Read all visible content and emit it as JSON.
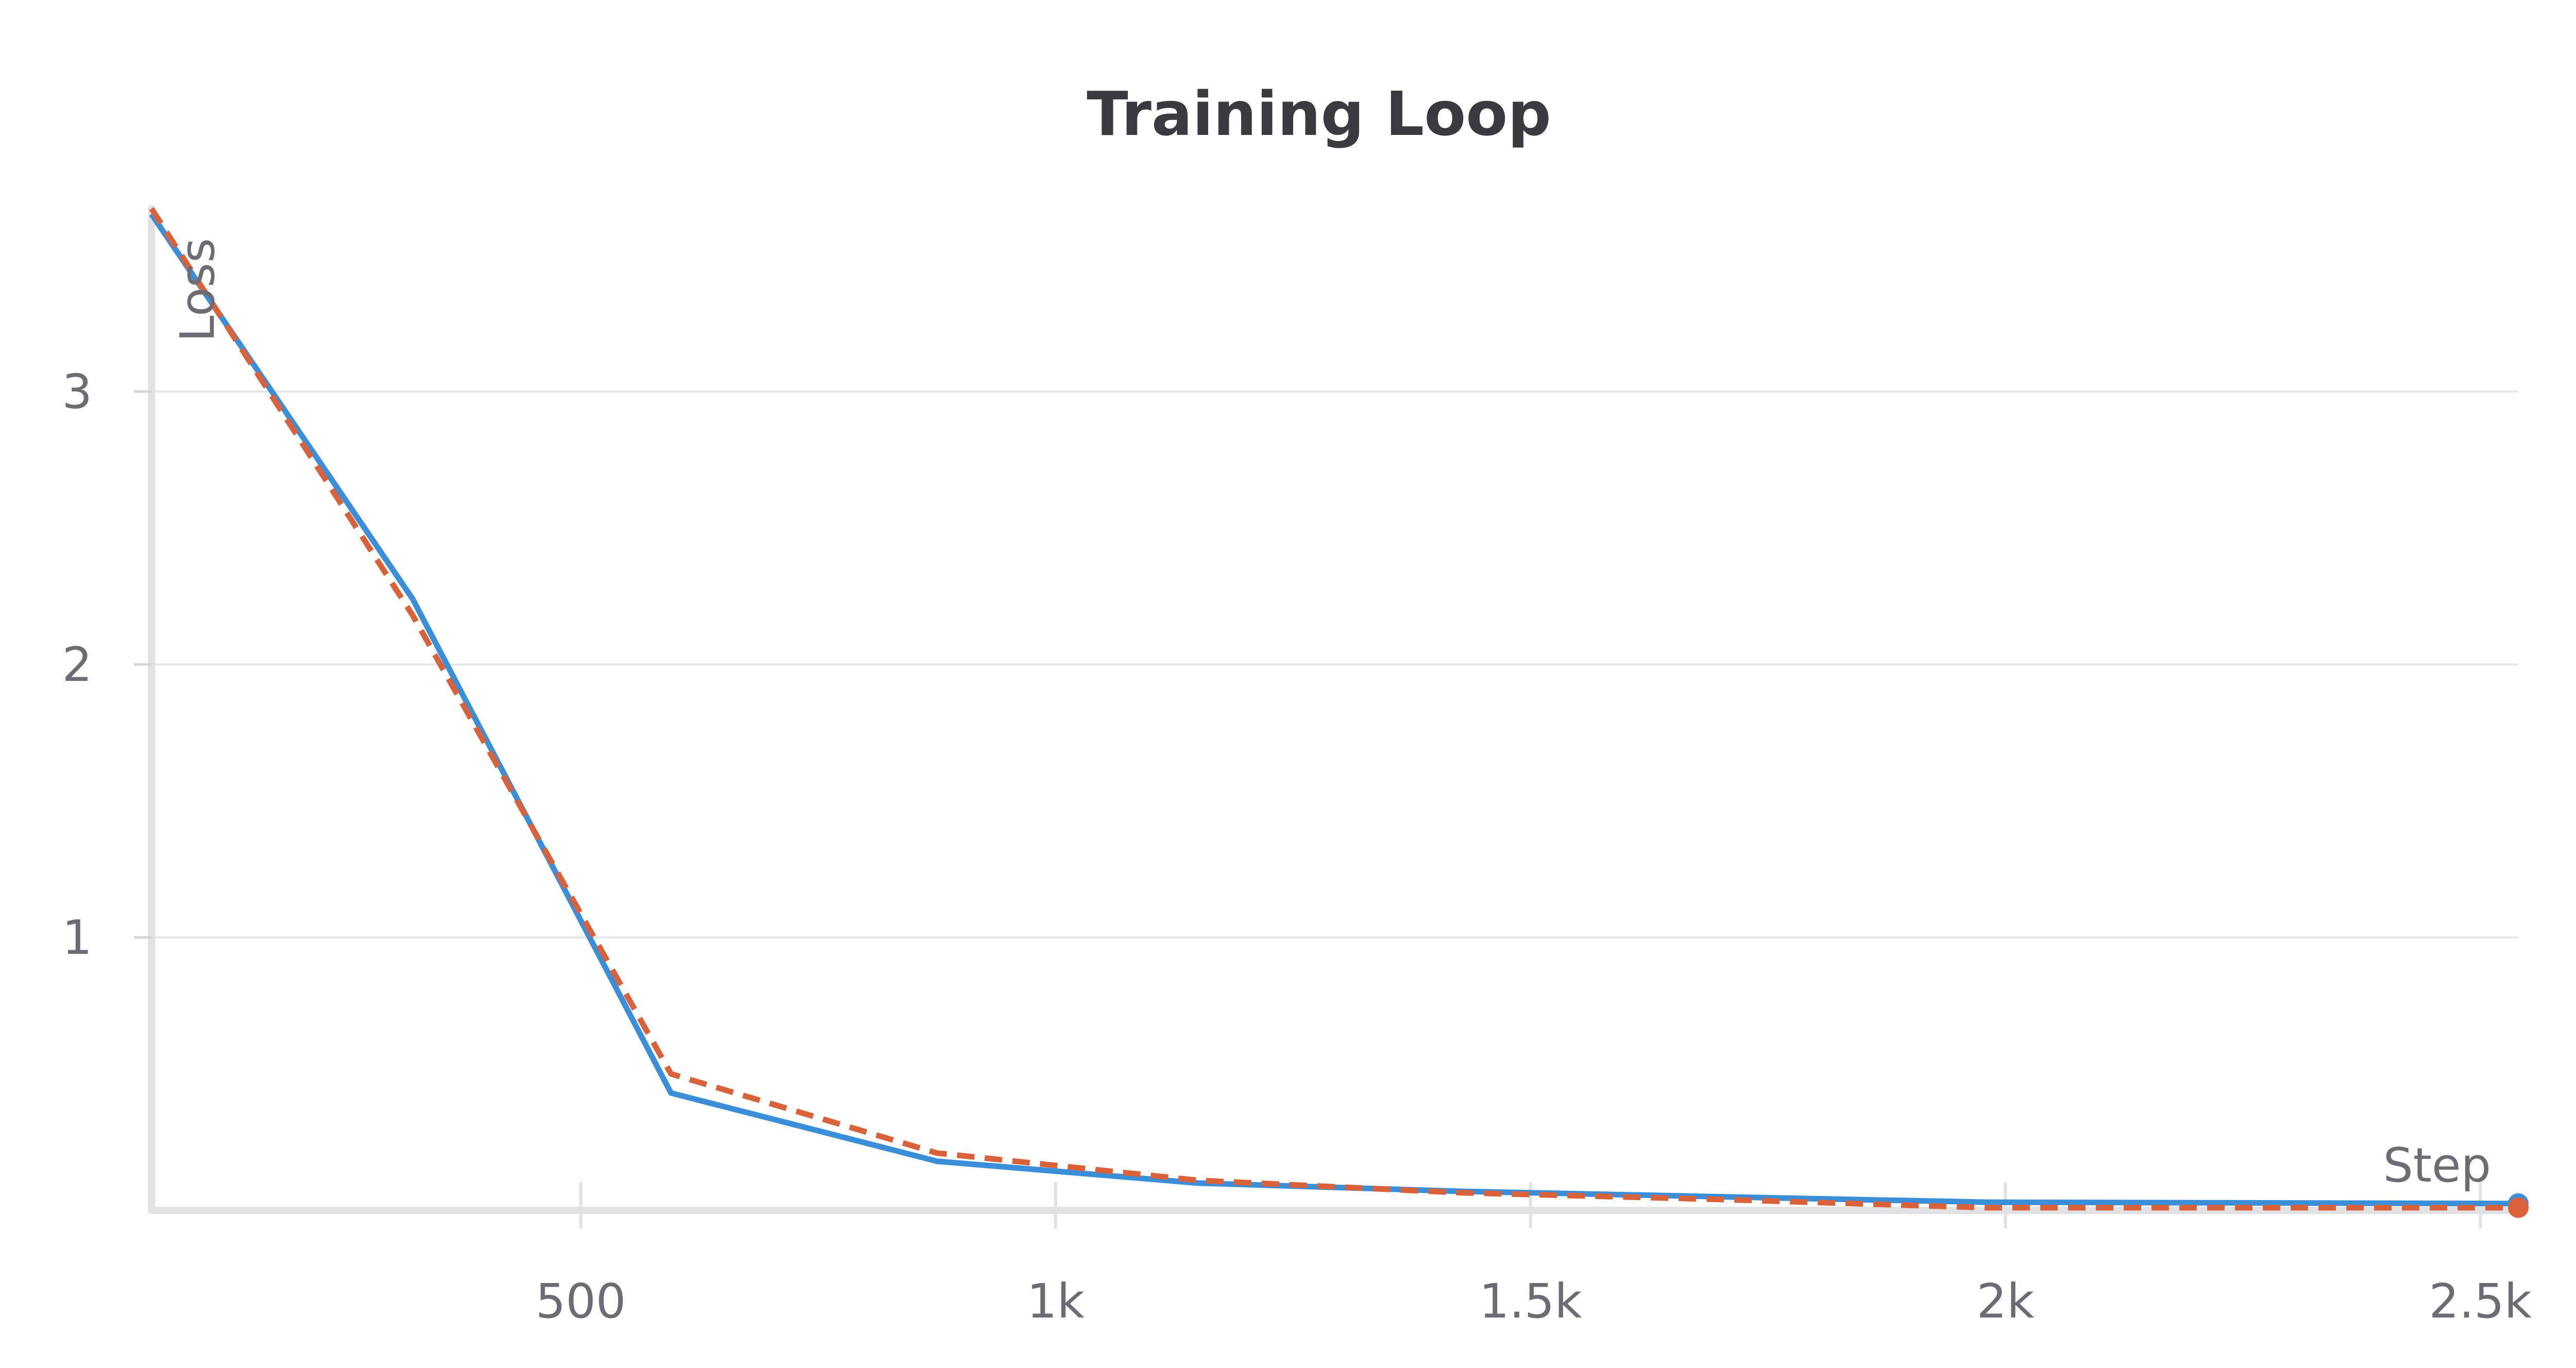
{
  "chart_data": {
    "type": "line",
    "title": "Training Loop",
    "xlabel": "Step",
    "ylabel": "Loss",
    "xlim": [
      48,
      2540
    ],
    "ylim": [
      0,
      3.67
    ],
    "x_ticks": [
      {
        "value": 500,
        "label": "500"
      },
      {
        "value": 1000,
        "label": "1k"
      },
      {
        "value": 1500,
        "label": "1.5k"
      },
      {
        "value": 2000,
        "label": "2k"
      },
      {
        "value": 2500,
        "label": "2.5k"
      }
    ],
    "y_ticks": [
      {
        "value": 1,
        "label": "1"
      },
      {
        "value": 2,
        "label": "2"
      },
      {
        "value": 3,
        "label": "3"
      }
    ],
    "grid": "horizontal",
    "legend": "none",
    "series": [
      {
        "color": "#3b8fd9",
        "dash": "solid",
        "x": [
          48,
          323,
          595,
          875,
          1150,
          1425,
          1700,
          1980,
          2540
        ],
        "y": [
          3.65,
          2.24,
          0.43,
          0.18,
          0.1,
          0.07,
          0.05,
          0.03,
          0.025
        ]
      },
      {
        "color": "#d9623b",
        "dash": "dashed",
        "x": [
          48,
          323,
          595,
          875,
          1150,
          1425,
          1700,
          1980,
          2540
        ],
        "y": [
          3.67,
          2.18,
          0.5,
          0.21,
          0.11,
          0.065,
          0.04,
          0.01,
          0.01
        ]
      }
    ]
  }
}
